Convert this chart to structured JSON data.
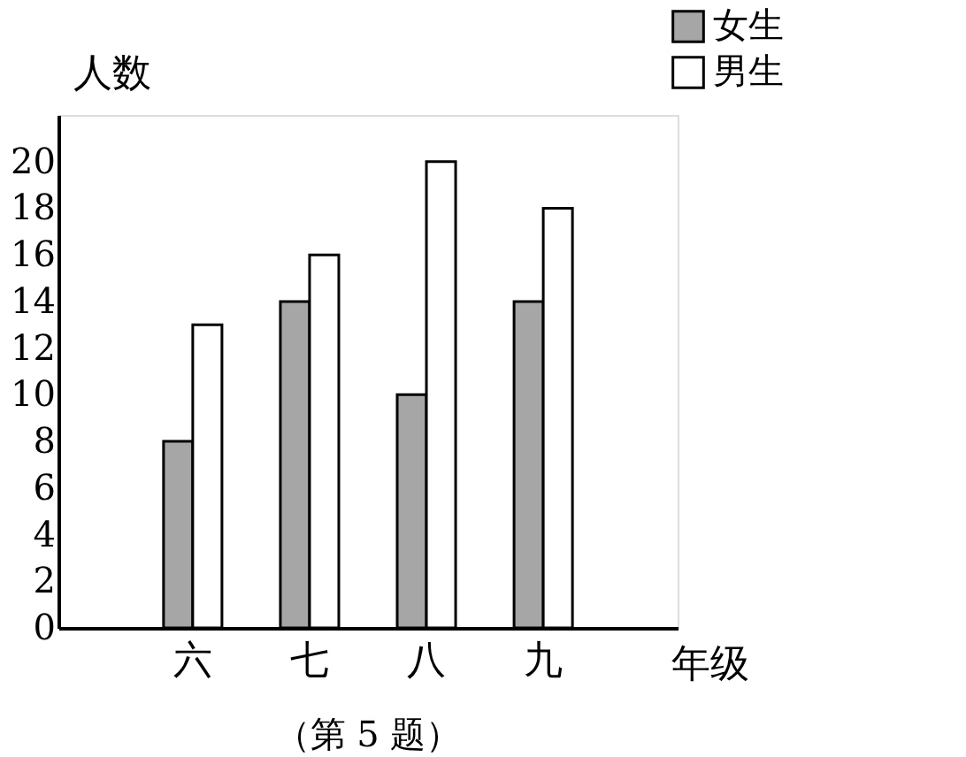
{
  "chart_data": {
    "type": "bar",
    "xlabel": "年级",
    "ylabel": "人数",
    "categories": [
      "六",
      "七",
      "八",
      "九"
    ],
    "series": [
      {
        "name": "女生",
        "color": "#a6a6a6",
        "values": [
          8,
          14,
          10,
          14
        ]
      },
      {
        "name": "男生",
        "color": "#ffffff",
        "values": [
          13,
          16,
          20,
          18
        ]
      }
    ],
    "ylim": [
      0,
      22
    ],
    "yticks": [
      0,
      2,
      4,
      6,
      8,
      10,
      12,
      14,
      16,
      18,
      20
    ],
    "grid": false,
    "legend": "top right",
    "annotations": [
      "（第 5 题）"
    ]
  }
}
